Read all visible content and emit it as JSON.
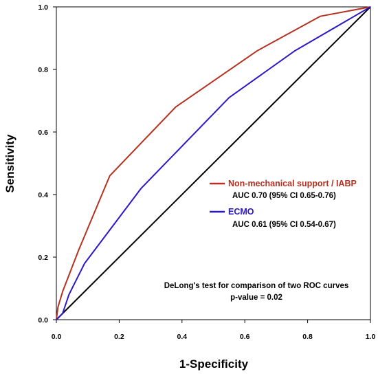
{
  "chart_data": {
    "type": "line",
    "title": "",
    "xlabel": "1-Specificity",
    "ylabel": "Sensitivity",
    "xlim": [
      0.0,
      1.0
    ],
    "ylim": [
      0.0,
      1.0
    ],
    "x_ticks": [
      "0.0",
      "0.2",
      "0.4",
      "0.6",
      "0.8",
      "1.0"
    ],
    "y_ticks": [
      "0.0",
      "0.2",
      "0.4",
      "0.6",
      "0.8",
      "1.0"
    ],
    "grid": false,
    "legend_position": "center-right",
    "reference_line": {
      "color": "#000000",
      "x": [
        0.0,
        1.0
      ],
      "y": [
        0.0,
        1.0
      ]
    },
    "series": [
      {
        "name": "Non-mechanical support / IABP",
        "auc_label": "AUC 0.70 (95% CI 0.65-0.76)",
        "color": "#b5301f",
        "x": [
          0.0,
          0.005,
          0.02,
          0.07,
          0.17,
          0.38,
          0.64,
          0.84,
          1.0
        ],
        "y": [
          0.0,
          0.04,
          0.09,
          0.22,
          0.46,
          0.68,
          0.86,
          0.97,
          1.0
        ]
      },
      {
        "name": "ECMO",
        "auc_label": "AUC 0.61 (95% CI 0.54-0.67)",
        "color": "#2a17c9",
        "x": [
          0.0,
          0.02,
          0.04,
          0.09,
          0.27,
          0.55,
          0.76,
          1.0
        ],
        "y": [
          0.0,
          0.02,
          0.08,
          0.18,
          0.42,
          0.71,
          0.86,
          1.0
        ]
      }
    ],
    "annotation": {
      "line1": "DeLong's test for comparison of two ROC curves",
      "line2": "p-value = 0.02"
    }
  }
}
